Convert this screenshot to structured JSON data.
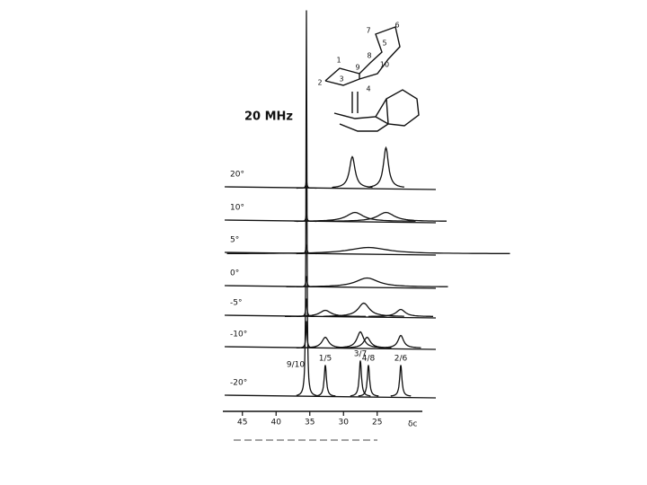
{
  "chart_data": {
    "type": "stacked-spectra",
    "title": "20 MHz",
    "x_label": "δc",
    "xlim": [
      47.9,
      18.3
    ],
    "xticks": [
      45,
      40,
      35,
      30,
      25
    ],
    "series": [
      {
        "name": "20°",
        "peaks": [
          {
            "x": 35.5,
            "height": 8,
            "width": 0.1
          },
          {
            "x": 28.7,
            "height": 35,
            "width": 0.5
          },
          {
            "x": 23.7,
            "height": 45,
            "width": 0.45
          }
        ]
      },
      {
        "name": "10°",
        "peaks": [
          {
            "x": 35.5,
            "height": 8,
            "width": 0.1
          },
          {
            "x": 28.3,
            "height": 10,
            "width": 1.5
          },
          {
            "x": 23.7,
            "height": 10,
            "width": 1.5
          }
        ]
      },
      {
        "name": "5°",
        "peaks": [
          {
            "x": 35.5,
            "height": 10,
            "width": 0.1
          },
          {
            "x": 26.3,
            "height": 7,
            "width": 3.5
          }
        ]
      },
      {
        "name": "0°",
        "peaks": [
          {
            "x": 35.5,
            "height": 12,
            "width": 0.1
          },
          {
            "x": 26.5,
            "height": 10,
            "width": 2.0
          }
        ]
      },
      {
        "name": "-5°",
        "peaks": [
          {
            "x": 35.5,
            "height": 20,
            "width": 0.1
          },
          {
            "x": 32.7,
            "height": 7,
            "width": 1.0
          },
          {
            "x": 27.0,
            "height": 15,
            "width": 1.0
          },
          {
            "x": 21.5,
            "height": 8,
            "width": 0.8
          }
        ]
      },
      {
        "name": "-10°",
        "peaks": [
          {
            "x": 35.5,
            "height": 30,
            "width": 0.1
          },
          {
            "x": 32.7,
            "height": 12,
            "width": 0.6
          },
          {
            "x": 27.5,
            "height": 18,
            "width": 0.6
          },
          {
            "x": 26.5,
            "height": 12,
            "width": 0.6
          },
          {
            "x": 21.5,
            "height": 14,
            "width": 0.5
          }
        ]
      },
      {
        "name": "-20°",
        "peaks": [
          {
            "x": 35.5,
            "height": 430,
            "width": 0.08,
            "label": "9/10"
          },
          {
            "x": 32.7,
            "height": 35,
            "width": 0.2,
            "label": "1/5"
          },
          {
            "x": 27.5,
            "height": 40,
            "width": 0.2,
            "label": "3/7"
          },
          {
            "x": 26.3,
            "height": 35,
            "width": 0.2,
            "label": "4/8"
          },
          {
            "x": 21.5,
            "height": 35,
            "width": 0.2,
            "label": "2/6"
          }
        ]
      }
    ]
  },
  "structure": {
    "atoms": [
      "6",
      "7",
      "5",
      "8",
      "1",
      "9",
      "10",
      "2",
      "3",
      "4"
    ]
  }
}
